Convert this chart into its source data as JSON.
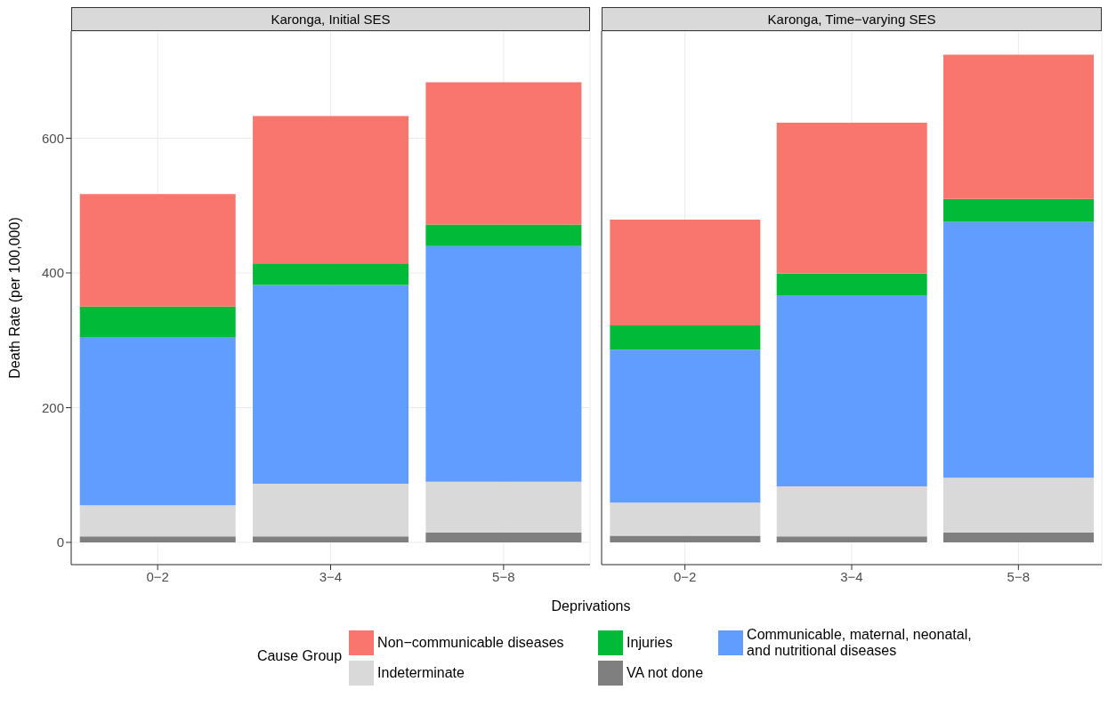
{
  "chart_data": [
    {
      "type": "bar",
      "title": "Karonga, Initial SES",
      "xlabel": "Deprivations",
      "ylabel": "Death Rate (per 100,000)",
      "legend_title": "Cause Group",
      "categories": [
        "0−2",
        "3−4",
        "5−8"
      ],
      "stacked": true,
      "ylim": [
        -33,
        759
      ],
      "yticks": [
        0,
        200,
        400,
        600
      ],
      "grid": true,
      "legend": "bottom",
      "series": [
        {
          "name": "VA not done",
          "color": "#7f7f7f",
          "values": [
            9,
            9,
            15
          ]
        },
        {
          "name": "Indeterminate",
          "color": "#d9d9d9",
          "values": [
            46,
            78,
            75
          ]
        },
        {
          "name": "Communicable, maternal, neonatal, and nutritional diseases",
          "color": "#619cff",
          "values": [
            250,
            295,
            350
          ]
        },
        {
          "name": "Injuries",
          "color": "#00ba38",
          "values": [
            45,
            32,
            32
          ]
        },
        {
          "name": "Non−communicable diseases",
          "color": "#f8766d",
          "values": [
            167,
            219,
            211
          ]
        }
      ]
    },
    {
      "type": "bar",
      "title": "Karonga, Time−varying SES",
      "categories": [
        "0−2",
        "3−4",
        "5−8"
      ],
      "stacked": true,
      "ylim": [
        -33,
        759
      ],
      "yticks": [
        0,
        200,
        400,
        600
      ],
      "grid": true,
      "tick_labels": "x",
      "series": [
        {
          "color": "#7f7f7f",
          "values": [
            10,
            9,
            15
          ]
        },
        {
          "color": "#d9d9d9",
          "values": [
            49,
            74,
            81
          ]
        },
        {
          "color": "#619cff",
          "values": [
            227,
            284,
            380
          ]
        },
        {
          "color": "#00ba38",
          "values": [
            36,
            32,
            34
          ]
        },
        {
          "color": "#f8766d",
          "values": [
            157,
            224,
            214
          ]
        }
      ]
    }
  ]
}
